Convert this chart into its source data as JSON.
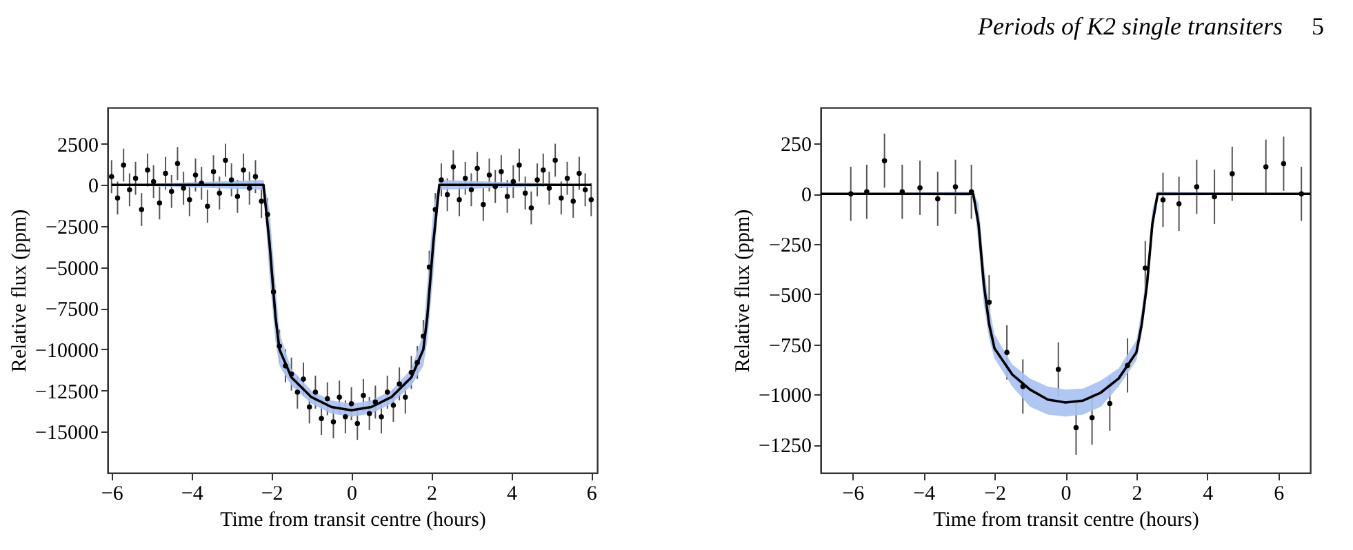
{
  "chart_data": [
    {
      "type": "scatter",
      "xlabel": "Time from transit centre (hours)",
      "ylabel": "Relative flux (ppm)",
      "xlim": [
        -6.1,
        6.15
      ],
      "ylim": [
        -17500,
        4700
      ],
      "xticks": [
        -6,
        -4,
        -2,
        0,
        2,
        4,
        6
      ],
      "yticks": [
        2500,
        0,
        -2500,
        -5000,
        -7500,
        -10000,
        -12500,
        -15000
      ],
      "grid": false,
      "series": [
        {
          "marker": "circle",
          "color": "#000000",
          "x": [
            -6.0,
            -5.85,
            -5.7,
            -5.55,
            -5.4,
            -5.25,
            -5.1,
            -4.95,
            -4.8,
            -4.65,
            -4.5,
            -4.35,
            -4.2,
            -4.05,
            -3.9,
            -3.75,
            -3.6,
            -3.45,
            -3.3,
            -3.15,
            -3.0,
            -2.85,
            -2.7,
            -2.55,
            -2.4,
            -2.25,
            -2.1,
            -1.95,
            -1.8,
            -1.65,
            -1.5,
            -1.35,
            -1.2,
            -1.05,
            -0.9,
            -0.75,
            -0.6,
            -0.45,
            -0.3,
            -0.15,
            0.0,
            0.15,
            0.3,
            0.45,
            0.6,
            0.75,
            0.9,
            1.05,
            1.2,
            1.35,
            1.5,
            1.65,
            1.8,
            1.95,
            2.1,
            2.25,
            2.4,
            2.55,
            2.7,
            2.85,
            3.0,
            3.15,
            3.3,
            3.45,
            3.6,
            3.75,
            3.9,
            4.05,
            4.2,
            4.35,
            4.5,
            4.65,
            4.8,
            4.95,
            5.1,
            5.25,
            5.4,
            5.55,
            5.7,
            5.85,
            6.0
          ],
          "values": [
            500,
            -800,
            1200,
            -300,
            400,
            -1500,
            900,
            200,
            -1100,
            700,
            -400,
            1300,
            -200,
            -900,
            600,
            100,
            -1300,
            800,
            -500,
            1500,
            300,
            -700,
            900,
            -200,
            500,
            -1000,
            -1800,
            -6500,
            -9800,
            -11000,
            -11500,
            -12600,
            -11800,
            -13500,
            -12600,
            -14200,
            -13000,
            -14400,
            -12900,
            -14100,
            -13300,
            -14500,
            -12800,
            -13900,
            -13200,
            -14100,
            -12600,
            -13400,
            -12100,
            -12900,
            -11400,
            -10800,
            -9200,
            -5000,
            -1500,
            300,
            -600,
            1100,
            -900,
            400,
            -300,
            1000,
            -1200,
            600,
            -100,
            800,
            -700,
            200,
            1200,
            -500,
            -1400,
            300,
            900,
            -200,
            1500,
            -800,
            400,
            -1000,
            700,
            -300,
            -900
          ],
          "errors": [
            1000,
            1000,
            1000,
            1000,
            1000,
            1000,
            1000,
            1000,
            1000,
            1000,
            1000,
            1000,
            1000,
            1000,
            1000,
            1000,
            1000,
            1000,
            1000,
            1000,
            1000,
            1000,
            1000,
            1000,
            1000,
            1000,
            1000,
            1000,
            1000,
            1000,
            1000,
            1000,
            1000,
            1000,
            1000,
            1000,
            1000,
            1000,
            1000,
            1000,
            1000,
            1000,
            1000,
            1000,
            1000,
            1000,
            1000,
            1000,
            1000,
            1000,
            1000,
            1000,
            1000,
            1000,
            1000,
            1000,
            1000,
            1000,
            1000,
            1000,
            1000,
            1000,
            1000,
            1000,
            1000,
            1000,
            1000,
            1000,
            1000,
            1000,
            1000,
            1000,
            1000,
            1000,
            1000,
            1000,
            1000,
            1000,
            1000,
            1000,
            1000
          ]
        },
        {
          "type": "line",
          "color": "#000000",
          "x": [
            -6,
            -2.2,
            -2.05,
            -1.9,
            -1.8,
            -1.5,
            -1,
            -0.5,
            0,
            0.5,
            1,
            1.5,
            1.8,
            1.9,
            2.05,
            2.2,
            6
          ],
          "values": [
            0,
            0,
            -3500,
            -8000,
            -10000,
            -11700,
            -12900,
            -13500,
            -13700,
            -13500,
            -12900,
            -11700,
            -10000,
            -8000,
            -3500,
            0,
            0
          ],
          "lower": [
            0,
            -300,
            -5500,
            -9500,
            -11000,
            -12200,
            -13300,
            -13900,
            -14100,
            -13900,
            -13300,
            -12200,
            -11000,
            -9500,
            -5500,
            -300,
            0
          ],
          "upper": [
            0,
            300,
            -1500,
            -6000,
            -9000,
            -11200,
            -12500,
            -13100,
            -13300,
            -13100,
            -12500,
            -11200,
            -9000,
            -6000,
            -1500,
            300,
            0
          ]
        }
      ]
    },
    {
      "type": "scatter",
      "xlabel": "Time from transit centre (hours)",
      "ylabel": "Relative flux (ppm)",
      "xlim": [
        -6.9,
        6.9
      ],
      "ylim": [
        -1390,
        430
      ],
      "xticks": [
        -6,
        -4,
        -2,
        0,
        2,
        4,
        6
      ],
      "yticks": [
        250,
        0,
        -250,
        -500,
        -750,
        -1000,
        -1250
      ],
      "grid": false,
      "annotations": [
        "Periods of K2 single transiters",
        "5"
      ],
      "series": [
        {
          "marker": "circle",
          "color": "#000000",
          "x": [
            -6.05,
            -5.6,
            -5.1,
            -4.6,
            -4.1,
            -3.6,
            -3.1,
            -2.65,
            -2.15,
            -1.65,
            -1.2,
            -0.2,
            0.3,
            0.75,
            1.25,
            1.75,
            2.25,
            2.75,
            3.2,
            3.7,
            4.2,
            4.7,
            5.65,
            6.15,
            6.65
          ],
          "values": [
            0,
            10,
            165,
            10,
            30,
            -25,
            35,
            10,
            -540,
            -790,
            -960,
            -875,
            -1165,
            -1115,
            -1045,
            -855,
            -370,
            -30,
            -50,
            35,
            -15,
            100,
            135,
            150,
            0
          ],
          "errors": [
            135,
            135,
            135,
            135,
            135,
            135,
            135,
            135,
            135,
            135,
            135,
            135,
            135,
            135,
            135,
            135,
            135,
            135,
            135,
            135,
            135,
            135,
            135,
            135,
            135
          ]
        },
        {
          "type": "line",
          "color": "#000000",
          "x": [
            -6.9,
            -2.6,
            -2.45,
            -2.3,
            -2.15,
            -2.0,
            -1.5,
            -1.0,
            -0.5,
            0,
            0.5,
            1.0,
            1.5,
            2.0,
            2.15,
            2.3,
            2.45,
            2.6,
            6.9
          ],
          "values": [
            0,
            0,
            -150,
            -450,
            -650,
            -770,
            -900,
            -975,
            -1025,
            -1040,
            -1030,
            -990,
            -920,
            -790,
            -650,
            -450,
            -150,
            0,
            0
          ],
          "lower": [
            0,
            -10,
            -250,
            -550,
            -720,
            -820,
            -960,
            -1060,
            -1100,
            -1110,
            -1100,
            -1060,
            -960,
            -830,
            -700,
            -500,
            -200,
            -10,
            0
          ],
          "upper": [
            0,
            10,
            -50,
            -350,
            -560,
            -700,
            -850,
            -920,
            -960,
            -975,
            -970,
            -930,
            -870,
            -730,
            -580,
            -380,
            -80,
            10,
            0
          ]
        }
      ]
    }
  ]
}
